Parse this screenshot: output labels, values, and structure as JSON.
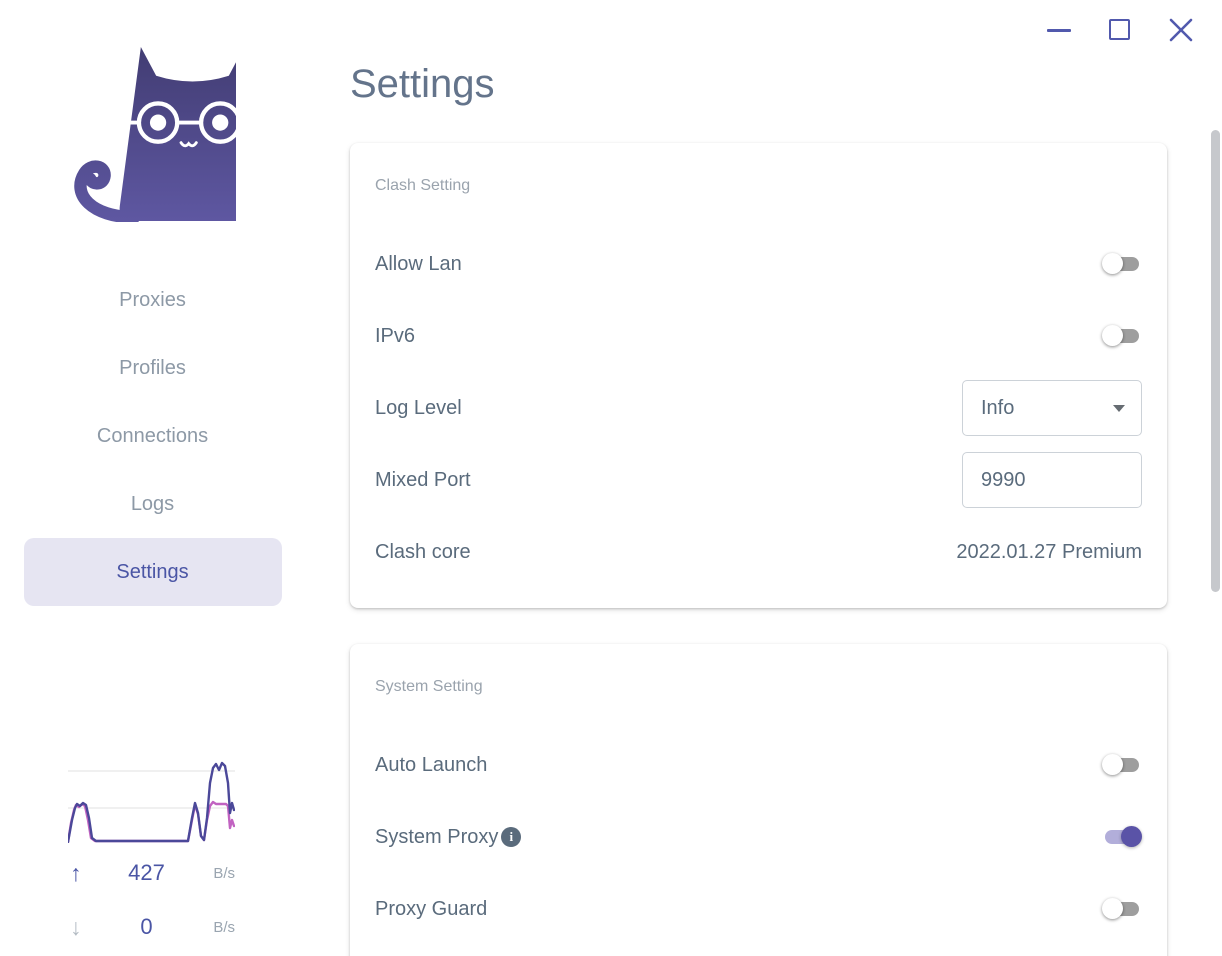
{
  "window": {
    "controls": {
      "minimize": "minimize",
      "maximize": "maximize",
      "close": "close"
    }
  },
  "sidebar": {
    "items": [
      {
        "label": "Proxies",
        "active": false
      },
      {
        "label": "Profiles",
        "active": false
      },
      {
        "label": "Connections",
        "active": false
      },
      {
        "label": "Logs",
        "active": false
      },
      {
        "label": "Settings",
        "active": true
      }
    ],
    "traffic": {
      "up": {
        "icon": "↑",
        "value": "427",
        "unit": "B/s"
      },
      "down": {
        "icon": "↓",
        "value": "0",
        "unit": "B/s"
      },
      "chart": {
        "type": "line",
        "width": 167,
        "height": 85,
        "gridlines_y": [
          13,
          50
        ],
        "gridline_color": "#ebebeb",
        "series": [
          {
            "name": "download",
            "color": "#c163c1",
            "points": [
              [
                0,
                84
              ],
              [
                3,
                65
              ],
              [
                6,
                52
              ],
              [
                8,
                47
              ],
              [
                11,
                49
              ],
              [
                14,
                46
              ],
              [
                17,
                48
              ],
              [
                20,
                62
              ],
              [
                23,
                80
              ],
              [
                27,
                83
              ],
              [
                120,
                83
              ],
              [
                124,
                62
              ],
              [
                127,
                47
              ],
              [
                130,
                56
              ],
              [
                133,
                78
              ],
              [
                136,
                82
              ],
              [
                139,
                62
              ],
              [
                142,
                48
              ],
              [
                145,
                44
              ],
              [
                148,
                46
              ],
              [
                158,
                46
              ],
              [
                160,
                48
              ],
              [
                162,
                70
              ],
              [
                164,
                62
              ],
              [
                166,
                68
              ]
            ]
          },
          {
            "name": "upload",
            "color": "#4b4899",
            "points": [
              [
                0,
                84
              ],
              [
                4,
                62
              ],
              [
                7,
                50
              ],
              [
                9,
                46
              ],
              [
                12,
                48
              ],
              [
                15,
                45
              ],
              [
                18,
                47
              ],
              [
                21,
                60
              ],
              [
                24,
                80
              ],
              [
                28,
                83
              ],
              [
                120,
                83
              ],
              [
                124,
                60
              ],
              [
                127,
                45
              ],
              [
                130,
                55
              ],
              [
                133,
                78
              ],
              [
                136,
                82
              ],
              [
                139,
                60
              ],
              [
                142,
                25
              ],
              [
                145,
                10
              ],
              [
                148,
                6
              ],
              [
                151,
                12
              ],
              [
                154,
                5
              ],
              [
                157,
                8
              ],
              [
                160,
                25
              ],
              [
                162,
                55
              ],
              [
                164,
                45
              ],
              [
                166,
                52
              ]
            ]
          }
        ]
      }
    }
  },
  "main": {
    "title": "Settings",
    "cards": [
      {
        "section": "Clash Setting",
        "rows": [
          {
            "label": "Allow Lan",
            "type": "toggle",
            "value": "off"
          },
          {
            "label": "IPv6",
            "type": "toggle",
            "value": "off"
          },
          {
            "label": "Log Level",
            "type": "select",
            "value": "Info"
          },
          {
            "label": "Mixed Port",
            "type": "input",
            "value": "9990"
          },
          {
            "label": "Clash core",
            "type": "text",
            "value": "2022.01.27 Premium"
          }
        ]
      },
      {
        "section": "System Setting",
        "rows": [
          {
            "label": "Auto Launch",
            "type": "toggle",
            "value": "off"
          },
          {
            "label": "System Proxy",
            "type": "toggle",
            "value": "on",
            "info_icon": "i"
          },
          {
            "label": "Proxy Guard",
            "type": "toggle",
            "value": "off"
          }
        ]
      }
    ]
  },
  "colors": {
    "accent": "#4a55a5",
    "nav_active_bg": "#e6e5f2",
    "toggle_on_knob": "#5a53a7",
    "toggle_on_track": "#b2aeda",
    "toggle_off_track": "#9e9e9e",
    "chart_upload": "#4b4899",
    "chart_download": "#c163c1",
    "window_controls": "#5159ad"
  }
}
